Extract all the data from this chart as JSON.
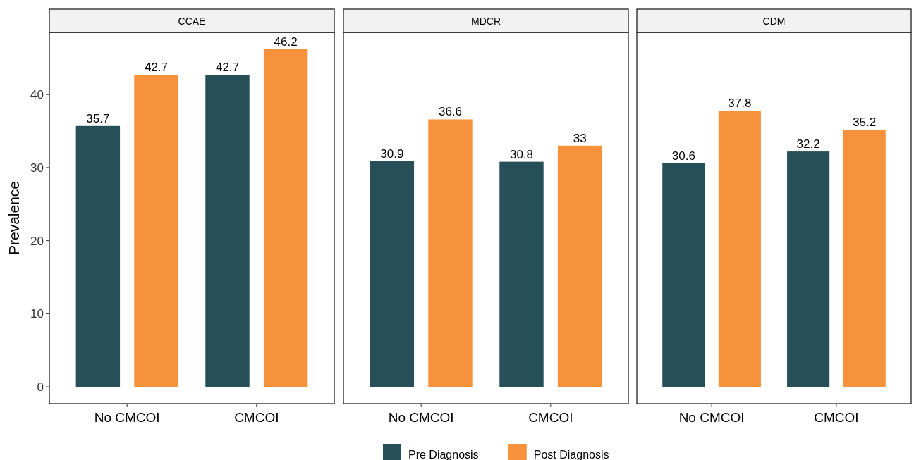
{
  "chart_data": [
    {
      "type": "bar",
      "title": "CCAE",
      "ylabel": "Prevalence",
      "categories": [
        "No CMCOI",
        "CMCOI"
      ],
      "series": [
        {
          "name": "Pre Diagnosis",
          "color": "#264f57",
          "values": [
            35.7,
            42.7
          ]
        },
        {
          "name": "Post Diagnosis",
          "color": "#f7923c",
          "values": [
            42.7,
            46.2
          ]
        }
      ],
      "ylim": [
        -2.3,
        48.5
      ],
      "yticks": [
        0,
        10,
        20,
        30,
        40
      ],
      "data_labels": true,
      "legend": "bottom"
    },
    {
      "type": "bar",
      "title": "MDCR",
      "categories": [
        "No CMCOI",
        "CMCOI"
      ],
      "series": [
        {
          "color": "#264f57",
          "values": [
            30.9,
            30.8
          ]
        },
        {
          "color": "#f7923c",
          "values": [
            36.6,
            33
          ]
        }
      ],
      "ylim": [
        -2.3,
        48.5
      ],
      "yticks": [
        0,
        10,
        20,
        30,
        40
      ],
      "data_labels": true,
      "tick_labels": "x"
    },
    {
      "type": "bar",
      "title": "CDM",
      "categories": [
        "No CMCOI",
        "CMCOI"
      ],
      "series": [
        {
          "color": "#264f57",
          "values": [
            30.6,
            32.2
          ]
        },
        {
          "color": "#f7923c",
          "values": [
            37.8,
            35.2
          ]
        }
      ],
      "ylim": [
        -2.3,
        48.5
      ],
      "yticks": [
        0,
        10,
        20,
        30,
        40
      ],
      "data_labels": true,
      "tick_labels": "x"
    }
  ]
}
